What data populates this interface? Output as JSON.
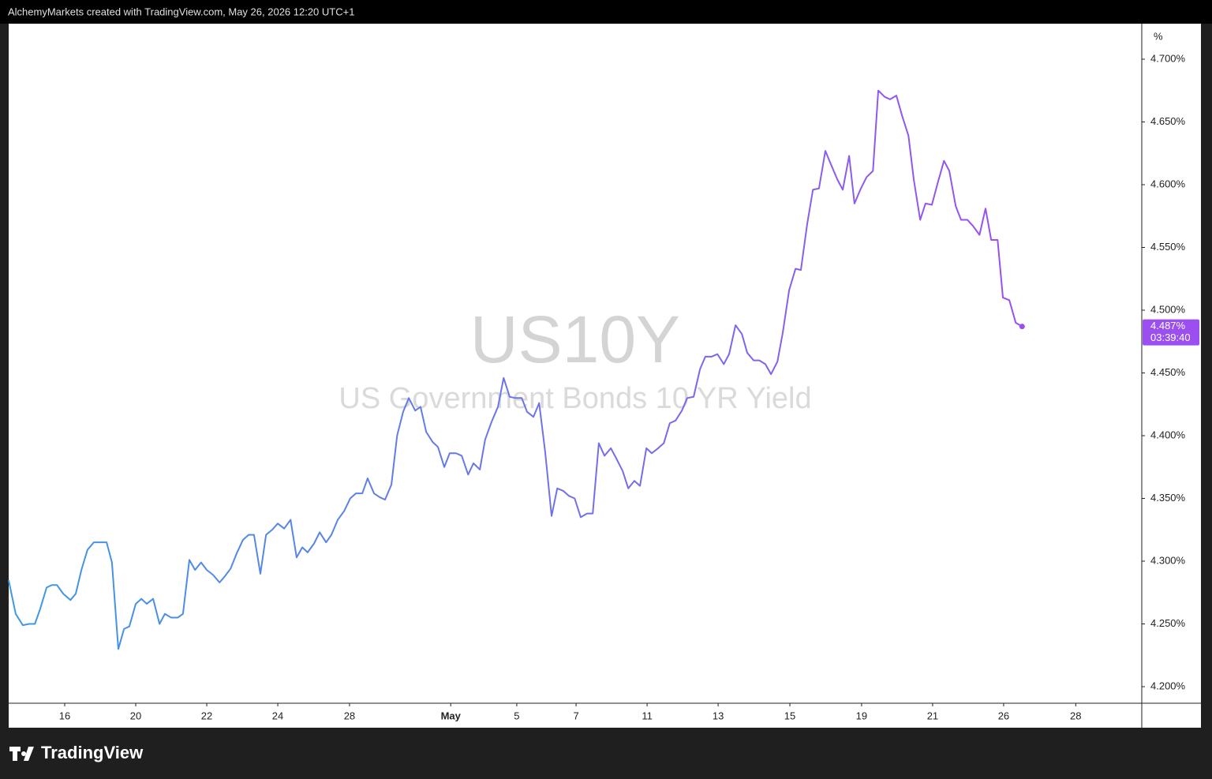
{
  "header": "AlchemyMarkets created with TradingView.com, May 26, 2026 12:20 UTC+1",
  "brand": "TradingView",
  "chart_data": {
    "type": "line",
    "title": "US10Y",
    "subtitle": "US Government Bonds 10 YR Yield",
    "y_unit": "%",
    "gradient": [
      "#3d9ae2",
      "#9b4ff0"
    ],
    "x": [
      -1.58,
      -1.38,
      -1.18,
      -1.0,
      -0.84,
      -0.69,
      -0.51,
      -0.36,
      -0.22,
      -0.04,
      0.16,
      0.31,
      0.47,
      0.64,
      0.82,
      1.0,
      1.18,
      1.33,
      1.51,
      1.67,
      1.82,
      2.0,
      2.16,
      2.31,
      2.49,
      2.67,
      2.82,
      3.0,
      3.18,
      3.33,
      3.51,
      3.67,
      3.84,
      4.0,
      4.18,
      4.36,
      4.51,
      4.67,
      4.84,
      5.02,
      5.18,
      5.33,
      5.51,
      5.67,
      5.84,
      6.0,
      6.18,
      6.36,
      6.53,
      6.69,
      6.84,
      7.02,
      7.18,
      7.36,
      7.51,
      7.69,
      7.87,
      8.04,
      8.2,
      8.38,
      8.53,
      8.71,
      8.87,
      9.02,
      9.2,
      9.36,
      9.53,
      9.69,
      9.87,
      10.02,
      10.18,
      10.36,
      10.51,
      10.69,
      10.84,
      11.02,
      11.18,
      11.36,
      11.51,
      11.69,
      11.84,
      12.02,
      12.2,
      12.36,
      12.53,
      12.69,
      12.87,
      13.02,
      13.2,
      13.36,
      13.53,
      13.71,
      13.87,
      14.04,
      14.2,
      14.36,
      14.53,
      14.71,
      14.87,
      15.04,
      15.2,
      15.38,
      15.53,
      15.71,
      15.87,
      16.04,
      16.2,
      16.38,
      16.53,
      16.71,
      16.87,
      17.04,
      17.2,
      17.38,
      17.53,
      17.71,
      17.89,
      18.04,
      18.22,
      18.38,
      18.56,
      18.71,
      18.89,
      19.07,
      19.22,
      19.4,
      19.56,
      19.73,
      19.89,
      20.07,
      20.22,
      20.4,
      20.58,
      20.73,
      20.91,
      21.07,
      21.24,
      21.42,
      21.58,
      21.76,
      21.91,
      22.09,
      22.24,
      22.42,
      22.58,
      22.76,
      22.91,
      23.09,
      23.24,
      23.42,
      23.58,
      23.76,
      23.91,
      24.09,
      24.24,
      24.42,
      24.58,
      24.76,
      24.91,
      25.09,
      25.24,
      25.42,
      25.58,
      25.76,
      25.93,
      26.09,
      26.27,
      26.42,
      26.6,
      26.78,
      26.96
    ],
    "values": [
      4.285,
      4.258,
      4.249,
      4.25,
      4.25,
      4.262,
      4.279,
      4.281,
      4.281,
      4.274,
      4.269,
      4.274,
      4.293,
      4.309,
      4.315,
      4.315,
      4.315,
      4.299,
      4.23,
      4.246,
      4.248,
      4.266,
      4.27,
      4.266,
      4.27,
      4.25,
      4.258,
      4.255,
      4.255,
      4.258,
      4.301,
      4.293,
      4.299,
      4.293,
      4.289,
      4.283,
      4.288,
      4.294,
      4.306,
      4.317,
      4.321,
      4.321,
      4.29,
      4.321,
      4.325,
      4.33,
      4.326,
      4.333,
      4.303,
      4.311,
      4.307,
      4.314,
      4.323,
      4.315,
      4.321,
      4.333,
      4.34,
      4.35,
      4.354,
      4.354,
      4.366,
      4.354,
      4.351,
      4.349,
      4.361,
      4.4,
      4.419,
      4.43,
      4.42,
      4.423,
      4.403,
      4.395,
      4.391,
      4.375,
      4.386,
      4.386,
      4.384,
      4.369,
      4.378,
      4.373,
      4.397,
      4.411,
      4.423,
      4.446,
      4.431,
      4.43,
      4.43,
      4.419,
      4.415,
      4.426,
      4.387,
      4.336,
      4.358,
      4.356,
      4.352,
      4.35,
      4.335,
      4.338,
      4.338,
      4.394,
      4.384,
      4.39,
      4.382,
      4.372,
      4.358,
      4.364,
      4.36,
      4.39,
      4.386,
      4.39,
      4.394,
      4.41,
      4.412,
      4.42,
      4.43,
      4.431,
      4.453,
      4.463,
      4.463,
      4.465,
      4.457,
      4.465,
      4.488,
      4.481,
      4.466,
      4.46,
      4.46,
      4.457,
      4.449,
      4.459,
      4.482,
      4.516,
      4.533,
      4.532,
      4.569,
      4.596,
      4.597,
      4.627,
      4.616,
      4.604,
      4.596,
      4.623,
      4.585,
      4.597,
      4.606,
      4.611,
      4.675,
      4.67,
      4.668,
      4.671,
      4.655,
      4.639,
      4.604,
      4.572,
      4.585,
      4.584,
      4.601,
      4.619,
      4.611,
      4.583,
      4.572,
      4.572,
      4.567,
      4.56,
      4.581,
      4.556,
      4.556,
      4.51,
      4.508,
      4.49,
      4.487
    ],
    "last_price": {
      "value": 4.487,
      "label": "4.487%",
      "countdown": "03:39:40"
    },
    "xlim": [
      -1.578,
      30.33
    ],
    "ylim": [
      4.1868,
      4.7283
    ],
    "xticks": [
      {
        "value": 0,
        "label": "16"
      },
      {
        "value": 2,
        "label": "20"
      },
      {
        "value": 4,
        "label": "22"
      },
      {
        "value": 6,
        "label": "24"
      },
      {
        "value": 8.02,
        "label": "28"
      },
      {
        "value": 10.87,
        "label": "May"
      },
      {
        "value": 12.73,
        "label": "5"
      },
      {
        "value": 14.4,
        "label": "7"
      },
      {
        "value": 16.4,
        "label": "11"
      },
      {
        "value": 18.4,
        "label": "13"
      },
      {
        "value": 20.42,
        "label": "15"
      },
      {
        "value": 22.44,
        "label": "19"
      },
      {
        "value": 24.44,
        "label": "21"
      },
      {
        "value": 26.44,
        "label": "26"
      },
      {
        "value": 28.47,
        "label": "28"
      }
    ],
    "yticks": [
      {
        "value": 4.2,
        "label": "4.200%"
      },
      {
        "value": 4.25,
        "label": "4.250%"
      },
      {
        "value": 4.3,
        "label": "4.300%"
      },
      {
        "value": 4.35,
        "label": "4.350%"
      },
      {
        "value": 4.4,
        "label": "4.400%"
      },
      {
        "value": 4.45,
        "label": "4.450%"
      },
      {
        "value": 4.5,
        "label": "4.500%"
      },
      {
        "value": 4.55,
        "label": "4.550%"
      },
      {
        "value": 4.6,
        "label": "4.600%"
      },
      {
        "value": 4.65,
        "label": "4.650%"
      },
      {
        "value": 4.7,
        "label": "4.700%"
      }
    ],
    "grid": false
  }
}
